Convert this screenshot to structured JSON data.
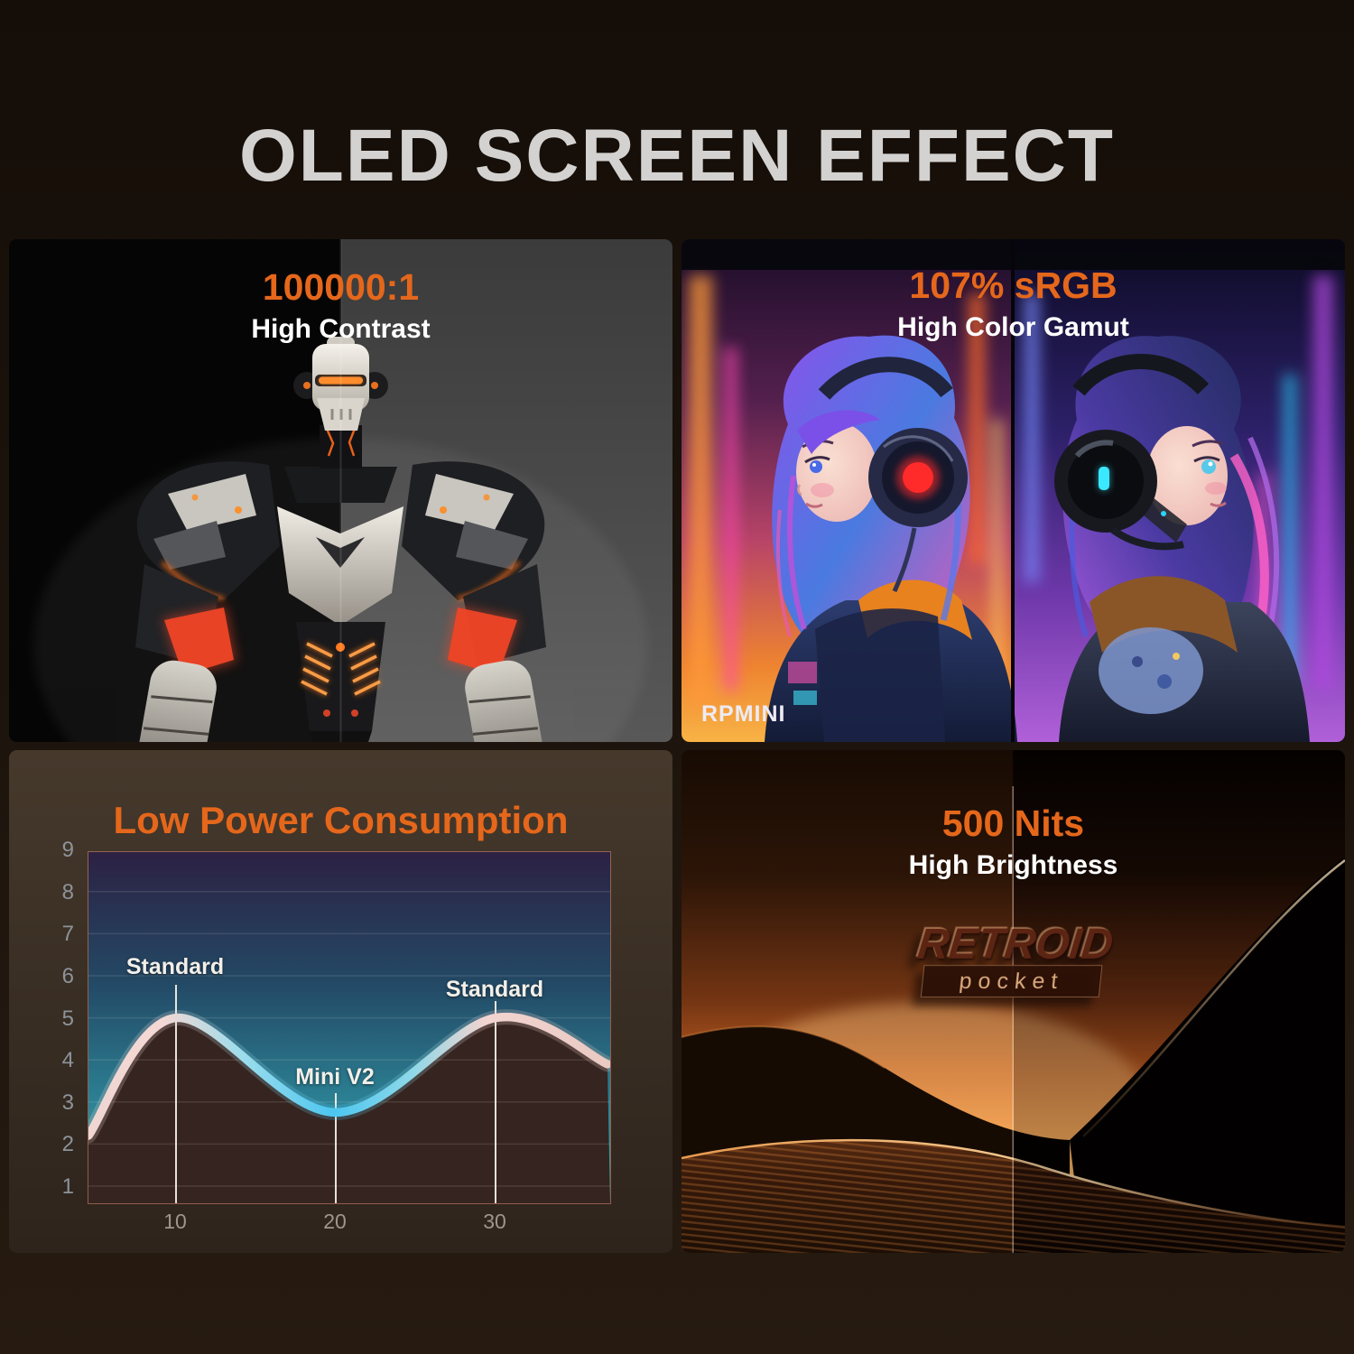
{
  "page": {
    "title": "OLED SCREEN EFFECT"
  },
  "colors": {
    "accent_orange": "#E5671B",
    "heading_gray": "#D3D2D0",
    "white": "#FFFFFF",
    "page_background": "#1B130C",
    "chart_curve_peak": "#F2D4CF",
    "chart_curve_valley": "#4CC6F0"
  },
  "panels": {
    "contrast": {
      "stat": "100000:1",
      "caption": "High Contrast",
      "image": "mech robot, black vs gray split background"
    },
    "gamut": {
      "stat": "107% sRGB",
      "caption": "High Color Gamut",
      "watermark": "RPMINI",
      "image": "two cyberpunk girls with headphones, neon city"
    },
    "power": {
      "title": "Low Power Consumption"
    },
    "brightness": {
      "stat": "500 Nits",
      "caption": "High Brightness",
      "logo": {
        "brand": "RETROID",
        "sub": "pocket"
      },
      "image": "desert dunes at sunset, split brightness"
    }
  },
  "chart_data": {
    "type": "line",
    "title": "Low Power Consumption",
    "xlabel": "",
    "ylabel": "",
    "x_ticks": [
      10,
      20,
      30
    ],
    "y_ticks": [
      1,
      2,
      3,
      4,
      5,
      6,
      7,
      8,
      9
    ],
    "xlim": [
      4.5,
      37
    ],
    "ylim": [
      0.6,
      9.6
    ],
    "grid": true,
    "legend": "none",
    "series": [
      {
        "name": "Power consumption curve",
        "points": [
          [
            4.5,
            2.2
          ],
          [
            10,
            5.0
          ],
          [
            20,
            2.75
          ],
          [
            30,
            5.0
          ],
          [
            37,
            3.9
          ]
        ]
      }
    ],
    "annotations": [
      {
        "label": "Standard",
        "x": 10,
        "peak": 5.0
      },
      {
        "label": "Mini V2",
        "x": 20,
        "peak": 2.75
      },
      {
        "label": "Standard",
        "x": 30,
        "peak": 5.0
      }
    ]
  }
}
